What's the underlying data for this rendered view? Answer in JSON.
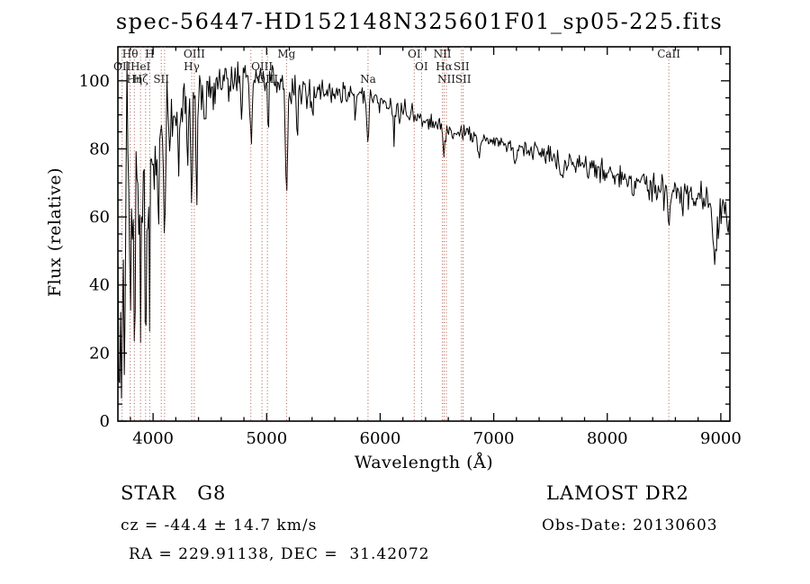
{
  "title": "spec-56447-HD152148N325601F01_sp05-225.fits",
  "colors": {
    "background": "#ffffff",
    "spectrum_line": "#000000",
    "marker_line": "#aa5544",
    "text": "#000000"
  },
  "footer": {
    "class_label": "STAR   G8",
    "survey": "LAMOST DR2",
    "cz": "cz = -44.4 ± 14.7 km/s",
    "obs_date": "Obs-Date: 20130603",
    "radec": "RA = 229.91138, DEC =  31.42072"
  },
  "chart_data": {
    "type": "line",
    "title": "spec-56447-HD152148N325601F01_sp05-225.fits",
    "xlabel": "Wavelength (Å)",
    "ylabel": "Flux (relative)",
    "xlim": [
      3690,
      9080
    ],
    "ylim": [
      0,
      110
    ],
    "xticks": [
      4000,
      5000,
      6000,
      7000,
      8000,
      9000
    ],
    "yticks": [
      0,
      20,
      40,
      60,
      80,
      100
    ],
    "x_minor_step": 200,
    "y_minor_step": 5,
    "grid": false,
    "seed": 20130603,
    "sample_step": 8,
    "continuum": [
      [
        3690,
        42
      ],
      [
        3710,
        56
      ],
      [
        3730,
        62
      ],
      [
        3760,
        65
      ],
      [
        3800,
        68
      ],
      [
        3850,
        70
      ],
      [
        3900,
        74
      ],
      [
        3950,
        77
      ],
      [
        4000,
        80
      ],
      [
        4100,
        86
      ],
      [
        4200,
        90
      ],
      [
        4300,
        95
      ],
      [
        4400,
        97
      ],
      [
        4500,
        100
      ],
      [
        4600,
        101
      ],
      [
        4700,
        102
      ],
      [
        4800,
        101
      ],
      [
        4900,
        101
      ],
      [
        5000,
        100
      ],
      [
        5100,
        99
      ],
      [
        5200,
        98
      ],
      [
        5300,
        97
      ],
      [
        5400,
        98
      ],
      [
        5500,
        97
      ],
      [
        5600,
        96
      ],
      [
        5700,
        96
      ],
      [
        5800,
        96
      ],
      [
        5900,
        95
      ],
      [
        6000,
        93
      ],
      [
        6100,
        92
      ],
      [
        6200,
        91
      ],
      [
        6300,
        90
      ],
      [
        6400,
        88
      ],
      [
        6500,
        87
      ],
      [
        6600,
        86
      ],
      [
        6700,
        85
      ],
      [
        6800,
        84
      ],
      [
        6900,
        83
      ],
      [
        7000,
        82
      ],
      [
        7100,
        81
      ],
      [
        7200,
        81
      ],
      [
        7300,
        80
      ],
      [
        7400,
        79
      ],
      [
        7500,
        78
      ],
      [
        7600,
        77
      ],
      [
        7700,
        76
      ],
      [
        7800,
        75
      ],
      [
        7900,
        74
      ],
      [
        8000,
        73
      ],
      [
        8100,
        72
      ],
      [
        8200,
        71
      ],
      [
        8300,
        70
      ],
      [
        8400,
        69
      ],
      [
        8500,
        68
      ],
      [
        8600,
        67
      ],
      [
        8700,
        66
      ],
      [
        8800,
        65
      ],
      [
        8900,
        63
      ],
      [
        9000,
        62
      ],
      [
        9080,
        60
      ]
    ],
    "absorption_features": [
      [
        3705,
        50,
        5
      ],
      [
        3727,
        45,
        6
      ],
      [
        3748,
        55,
        5
      ],
      [
        3798,
        40,
        6
      ],
      [
        3835,
        48,
        6
      ],
      [
        3889,
        42,
        6
      ],
      [
        3934,
        52,
        6
      ],
      [
        3970,
        46,
        6
      ],
      [
        4045,
        25,
        6
      ],
      [
        4101,
        42,
        7
      ],
      [
        4227,
        20,
        6
      ],
      [
        4305,
        24,
        8
      ],
      [
        4340,
        28,
        7
      ],
      [
        4383,
        32,
        6
      ],
      [
        4455,
        15,
        7
      ],
      [
        4530,
        12,
        6
      ],
      [
        4668,
        12,
        6
      ],
      [
        4780,
        16,
        7
      ],
      [
        4861,
        20,
        8
      ],
      [
        5015,
        12,
        6
      ],
      [
        5175,
        30,
        9
      ],
      [
        5270,
        14,
        7
      ],
      [
        5405,
        10,
        6
      ],
      [
        5780,
        8,
        6
      ],
      [
        5893,
        15,
        8
      ],
      [
        6122,
        8,
        6
      ],
      [
        6563,
        9,
        8
      ],
      [
        6870,
        6,
        10
      ],
      [
        7190,
        5,
        10
      ],
      [
        7600,
        6,
        12
      ],
      [
        8230,
        5,
        7
      ],
      [
        8498,
        6,
        6
      ],
      [
        8542,
        9,
        6
      ],
      [
        8662,
        6,
        6
      ],
      [
        8950,
        13,
        22
      ]
    ],
    "noise_profile": [
      [
        3690,
        30
      ],
      [
        3780,
        22
      ],
      [
        3900,
        15
      ],
      [
        4000,
        11
      ],
      [
        4150,
        8
      ],
      [
        4350,
        6
      ],
      [
        4600,
        4.5
      ],
      [
        5400,
        3
      ],
      [
        6300,
        2.2
      ],
      [
        7400,
        2.8
      ],
      [
        8300,
        4
      ],
      [
        8800,
        6
      ]
    ],
    "spectral_markers": [
      {
        "label": "Hθ",
        "wavelength": 3798,
        "row": 1
      },
      {
        "label": "H",
        "wavelength": 3970,
        "row": 1
      },
      {
        "label": "OIII",
        "wavelength": 4363,
        "row": 1
      },
      {
        "label": "Mg",
        "wavelength": 5175,
        "row": 1
      },
      {
        "label": "OI",
        "wavelength": 6300,
        "row": 1
      },
      {
        "label": "NII",
        "wavelength": 6548,
        "row": 1
      },
      {
        "label": "CaII",
        "wavelength": 8542,
        "row": 1
      },
      {
        "label": "OII",
        "wavelength": 3727,
        "row": 2
      },
      {
        "label": "HeI",
        "wavelength": 3889,
        "row": 2
      },
      {
        "label": "Hγ",
        "wavelength": 4340,
        "row": 2
      },
      {
        "label": "OIII",
        "wavelength": 4959,
        "row": 2
      },
      {
        "label": "OI",
        "wavelength": 6364,
        "row": 2
      },
      {
        "label": "Hα",
        "wavelength": 6563,
        "row": 2
      },
      {
        "label": "SII",
        "wavelength": 6716,
        "row": 2
      },
      {
        "label": "Hη",
        "wavelength": 3835,
        "row": 3
      },
      {
        "label": "Hζ",
        "wavelength": 3889,
        "row": 3
      },
      {
        "label": "SII",
        "wavelength": 4072,
        "row": 3
      },
      {
        "label": "OIII",
        "wavelength": 5007,
        "row": 3
      },
      {
        "label": "Na",
        "wavelength": 5893,
        "row": 3
      },
      {
        "label": "NII",
        "wavelength": 6583,
        "row": 3
      },
      {
        "label": "SII",
        "wavelength": 6731,
        "row": 3
      }
    ],
    "unlabeled_lines": [
      3934,
      4101,
      4861
    ]
  }
}
